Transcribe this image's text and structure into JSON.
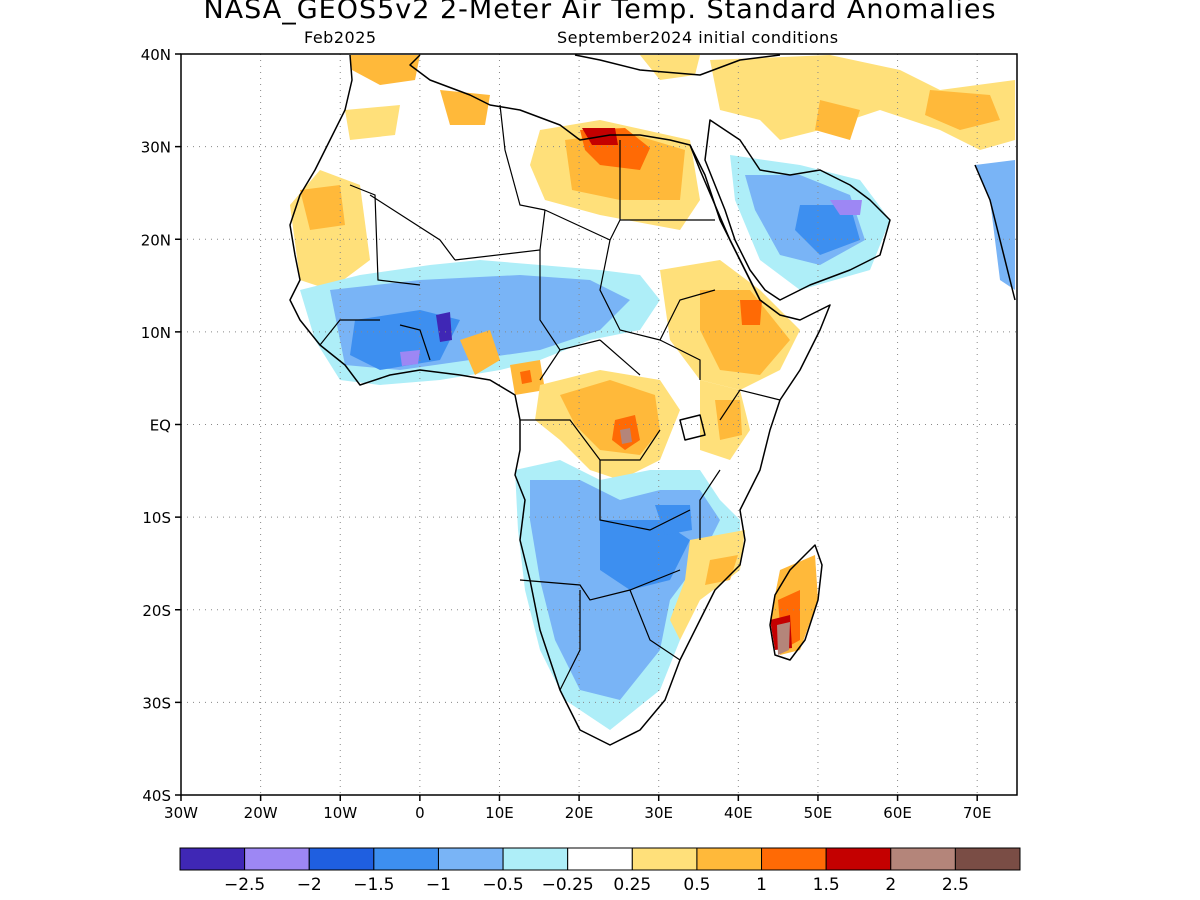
{
  "title": "NASA_GEOS5v2 2-Meter Air Temp. Standard Anomalies",
  "subtitle_left": "Feb2025",
  "subtitle_right": "September2024 initial conditions",
  "map": {
    "lon_range": [
      -30,
      75
    ],
    "lat_range": [
      -40,
      40
    ],
    "lat_ticks": [
      {
        "v": 40,
        "label": "40N"
      },
      {
        "v": 30,
        "label": "30N"
      },
      {
        "v": 20,
        "label": "20N"
      },
      {
        "v": 10,
        "label": "10N"
      },
      {
        "v": 0,
        "label": "EQ"
      },
      {
        "v": -10,
        "label": "10S"
      },
      {
        "v": -20,
        "label": "20S"
      },
      {
        "v": -30,
        "label": "30S"
      },
      {
        "v": -40,
        "label": "40S"
      }
    ],
    "lon_ticks": [
      {
        "v": -30,
        "label": "30W"
      },
      {
        "v": -20,
        "label": "20W"
      },
      {
        "v": -10,
        "label": "10W"
      },
      {
        "v": 0,
        "label": "0"
      },
      {
        "v": 10,
        "label": "10E"
      },
      {
        "v": 20,
        "label": "20E"
      },
      {
        "v": 30,
        "label": "30E"
      },
      {
        "v": 40,
        "label": "40E"
      },
      {
        "v": 50,
        "label": "50E"
      },
      {
        "v": 60,
        "label": "60E"
      },
      {
        "v": 70,
        "label": "70E"
      }
    ],
    "grid": "dotted"
  },
  "colorbar": {
    "colors": [
      "#3f27b5",
      "#9d87f4",
      "#1f5fe0",
      "#3d8ff0",
      "#79b4f6",
      "#aeeef8",
      "#ffffff",
      "#ffe07a",
      "#ffb93a",
      "#ff6a05",
      "#c40000",
      "#b4857a",
      "#7a4d45"
    ],
    "labels": [
      "−2.5",
      "−2",
      "−1.5",
      "−1",
      "−0.5",
      "−0.25",
      "0.25",
      "0.5",
      "1",
      "1.5",
      "2",
      "2.5"
    ]
  },
  "colors": {
    "positive_anomaly": "#ffb93a",
    "negative_anomaly": "#79b4f6",
    "coastline": "#000000"
  }
}
